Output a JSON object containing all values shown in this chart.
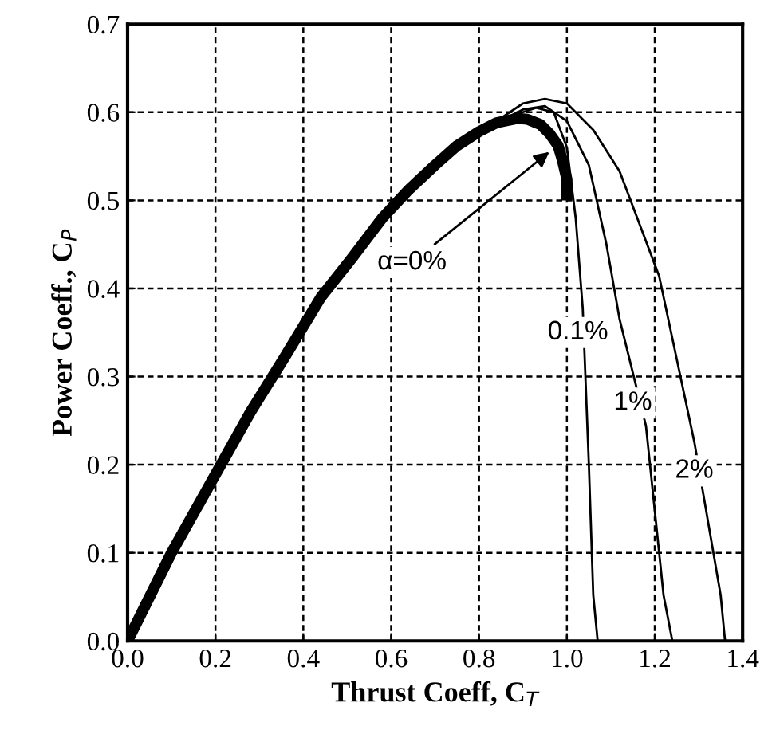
{
  "chart_data": {
    "type": "line",
    "xlabel": "Thrust Coeff, C$_{T}$",
    "ylabel": "Power Coeff., C$_{P}$",
    "xlim": [
      0.0,
      1.4
    ],
    "ylim": [
      0.0,
      0.7
    ],
    "xticks": [
      {
        "value": 0,
        "label": "0.0"
      },
      0.2,
      0.4,
      0.6,
      0.8,
      {
        "value": 1,
        "label": "1.0"
      },
      1.2,
      1.4
    ],
    "yticks": [
      {
        "value": 0,
        "label": "0.0"
      },
      0.1,
      0.2,
      0.3,
      0.4,
      0.5,
      0.6,
      0.7
    ],
    "grid": true,
    "marker": "none",
    "line_style": "solid",
    "series": [
      {
        "color": "#000000",
        "x": [
          0,
          0.1,
          0.19,
          0.28,
          0.36,
          0.44,
          0.51,
          0.58,
          0.64,
          0.7,
          0.75,
          0.8,
          0.84,
          0.889,
          0.91,
          0.94,
          0.96,
          0.98,
          0.99,
          1.0,
          1.0
        ],
        "values": [
          0,
          0.1,
          0.18,
          0.26,
          0.324,
          0.39,
          0.434,
          0.48,
          0.512,
          0.54,
          0.562,
          0.578,
          0.588,
          0.593,
          0.592,
          0.586,
          0.576,
          0.562,
          0.545,
          0.524,
          0.5
        ]
      },
      {
        "color": "#000000",
        "x": [
          0,
          0.19,
          0.36,
          0.51,
          0.64,
          0.75,
          0.84,
          0.9,
          0.93,
          0.97,
          1.0,
          1.02,
          1.036,
          1.05,
          1.06,
          1.07
        ],
        "values": [
          0,
          0.18,
          0.324,
          0.434,
          0.512,
          0.562,
          0.588,
          0.6,
          0.605,
          0.6,
          0.56,
          0.48,
          0.378,
          0.2,
          0.052,
          0
        ]
      },
      {
        "color": "#000000",
        "x": [
          0,
          0.19,
          0.36,
          0.51,
          0.64,
          0.75,
          0.84,
          0.9,
          0.95,
          1.0,
          1.05,
          1.09,
          1.12,
          1.18,
          1.22,
          1.24
        ],
        "values": [
          0,
          0.18,
          0.324,
          0.434,
          0.512,
          0.562,
          0.588,
          0.603,
          0.607,
          0.59,
          0.54,
          0.45,
          0.365,
          0.244,
          0.052,
          0
        ]
      },
      {
        "color": "#000000",
        "x": [
          0,
          0.19,
          0.36,
          0.51,
          0.64,
          0.75,
          0.84,
          0.9,
          0.95,
          1.0,
          1.06,
          1.12,
          1.21,
          1.29,
          1.35,
          1.36
        ],
        "values": [
          0,
          0.18,
          0.324,
          0.434,
          0.512,
          0.562,
          0.59,
          0.61,
          0.615,
          0.61,
          0.58,
          0.533,
          0.414,
          0.226,
          0.052,
          0
        ]
      }
    ],
    "annotations": [
      {
        "text": "α=0%",
        "x": 0.96,
        "y": 0.555
      },
      {
        "text": "0.1%",
        "x": 1.025,
        "y": 0.35
      },
      {
        "text": "1%",
        "x": 1.15,
        "y": 0.27
      },
      {
        "text": "2%",
        "x": 1.29,
        "y": 0.193
      }
    ]
  }
}
